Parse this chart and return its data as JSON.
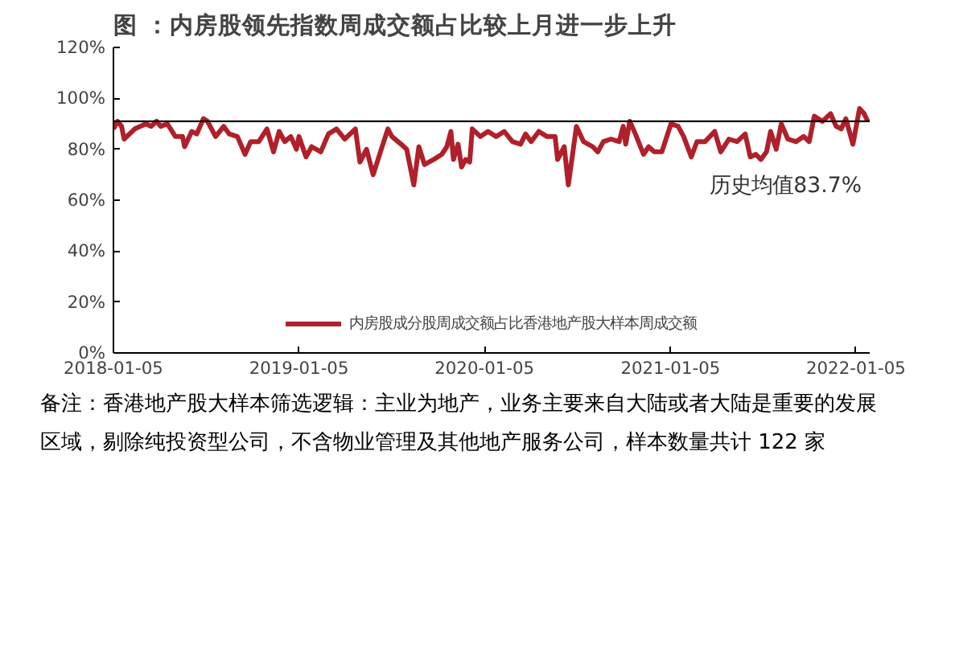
{
  "chart_data": {
    "type": "line",
    "title": "图 ：内房股领先指数周成交额占比较上月进一步上升",
    "x": [
      "2018-01-05",
      "2018-01-13",
      "2018-01-21",
      "2018-01-26",
      "2018-02-16",
      "2018-03-10",
      "2018-03-20",
      "2018-03-31",
      "2018-04-08",
      "2018-04-21",
      "2018-05-07",
      "2018-05-21",
      "2018-05-25",
      "2018-06-08",
      "2018-06-18",
      "2018-07-01",
      "2018-07-09",
      "2018-07-25",
      "2018-08-10",
      "2018-08-21",
      "2018-09-06",
      "2018-09-21",
      "2018-10-02",
      "2018-10-18",
      "2018-11-03",
      "2018-11-16",
      "2018-11-27",
      "2018-12-08",
      "2018-12-20",
      "2018-12-31",
      "2019-01-05",
      "2019-01-19",
      "2019-01-30",
      "2019-02-17",
      "2019-03-04",
      "2019-03-20",
      "2019-04-05",
      "2019-04-26",
      "2019-05-05",
      "2019-05-18",
      "2019-05-31",
      "2019-06-16",
      "2019-06-29",
      "2019-07-07",
      "2019-07-25",
      "2019-08-05",
      "2019-08-19",
      "2019-08-29",
      "2019-09-09",
      "2019-09-27",
      "2019-10-13",
      "2019-10-23",
      "2019-10-31",
      "2019-11-05",
      "2019-11-14",
      "2019-11-21",
      "2019-11-29",
      "2019-12-07",
      "2019-12-12",
      "2019-12-28",
      "2020-01-12",
      "2020-01-28",
      "2020-02-13",
      "2020-02-29",
      "2020-03-16",
      "2020-03-26",
      "2020-04-06",
      "2020-04-21",
      "2020-05-07",
      "2020-05-23",
      "2020-05-28",
      "2020-06-10",
      "2020-06-18",
      "2020-07-04",
      "2020-07-18",
      "2020-08-05",
      "2020-08-15",
      "2020-08-26",
      "2020-09-10",
      "2020-09-26",
      "2020-10-04",
      "2020-10-09",
      "2020-10-17",
      "2020-10-28",
      "2020-11-13",
      "2020-11-23",
      "2020-12-04",
      "2020-12-19",
      "2021-01-06",
      "2021-01-20",
      "2021-01-31",
      "2021-02-15",
      "2021-02-26",
      "2021-03-14",
      "2021-04-02",
      "2021-04-14",
      "2021-04-30",
      "2021-05-16",
      "2021-06-01",
      "2021-06-11",
      "2021-06-22",
      "2021-07-02",
      "2021-07-13",
      "2021-07-21",
      "2021-08-01",
      "2021-08-11",
      "2021-08-24",
      "2021-09-09",
      "2021-09-24",
      "2021-10-05",
      "2021-10-15",
      "2021-10-31",
      "2021-11-16",
      "2021-11-27",
      "2021-12-07",
      "2021-12-16",
      "2021-12-30",
      "2022-01-12",
      "2022-01-21",
      "2022-01-28"
    ],
    "series": [
      {
        "name": "内房股成分股周成交额占比香港地产股大样本周成交额",
        "color": "#b0202a",
        "values": [
          88,
          91,
          89,
          84,
          88,
          90,
          89,
          91,
          89,
          90,
          85,
          85,
          81,
          87,
          86,
          92,
          91,
          85,
          89,
          86,
          85,
          78,
          83,
          83,
          88,
          79,
          87,
          83,
          85,
          80,
          85,
          77,
          81,
          79,
          86,
          88,
          84,
          88,
          75,
          80,
          70,
          80,
          88,
          85,
          82,
          80,
          66,
          81,
          74,
          76,
          78,
          81,
          87,
          76,
          82,
          73,
          76,
          75,
          88,
          85,
          87,
          85,
          87,
          83,
          82,
          86,
          83,
          87,
          85,
          85,
          76,
          81,
          66,
          89,
          83,
          81,
          79,
          83,
          84,
          83,
          89,
          82,
          91,
          86,
          78,
          81,
          79,
          79,
          90,
          89,
          85,
          77,
          83,
          83,
          87,
          79,
          84,
          83,
          86,
          77,
          78,
          76,
          79,
          87,
          80,
          90,
          84,
          83,
          85,
          83,
          93,
          91,
          94,
          89,
          88,
          92,
          82,
          96,
          94,
          91
        ]
      }
    ],
    "xlim": [
      "2018-01-05",
      "2022-02-01"
    ],
    "xticks": [
      "2018-01-05",
      "2019-01-05",
      "2020-01-05",
      "2021-01-05",
      "2022-01-05"
    ],
    "ylim": [
      0,
      120
    ],
    "yticks": [
      {
        "value": 0,
        "label": "0%"
      },
      {
        "value": 20,
        "label": "20%"
      },
      {
        "value": 40,
        "label": "40%"
      },
      {
        "value": 60,
        "label": "60%"
      },
      {
        "value": 80,
        "label": "80%"
      },
      {
        "value": 100,
        "label": "100%"
      },
      {
        "value": 120,
        "label": "120%"
      }
    ],
    "ref_lines": [
      {
        "axis": "y",
        "value": 91,
        "label": "历史均值83.7%",
        "color": "#000000"
      }
    ],
    "legend": "bottom",
    "grid": false,
    "annotations": [
      "备注：香港地产股大样本筛选逻辑：主业为地产，业务主要来自大陆或者大陆是重要的发展区域，剔除纯投资型公司，不含物业管理及其他地产服务公司，样本数量共计 122 家"
    ]
  }
}
